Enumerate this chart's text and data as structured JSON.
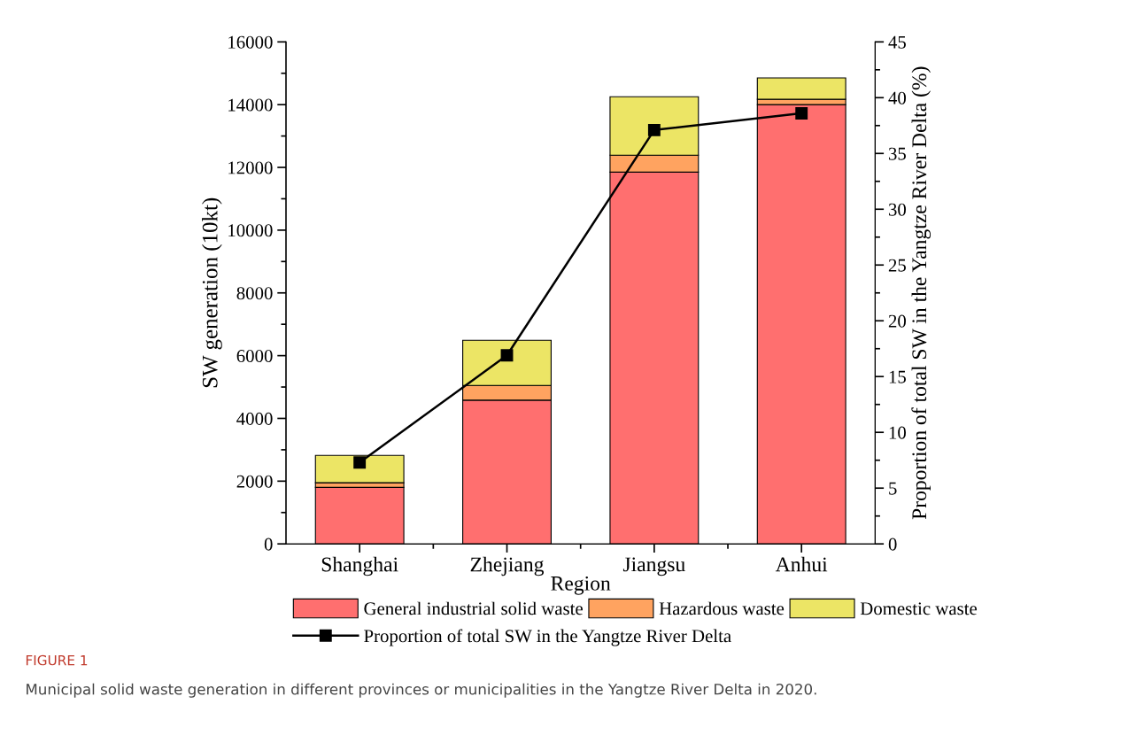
{
  "chart_data": {
    "type": "bar",
    "stacked": true,
    "xlabel": "Region",
    "ylabel": "SW generation (10kt)",
    "y2label": "Proportion of total SW in the Yangtze River Delta (%)",
    "categories": [
      "Shanghai",
      "Zhejiang",
      "Jiangsu",
      "Anhui"
    ],
    "series": [
      {
        "name": "General industrial solid waste",
        "color": "#ff6f6f",
        "values": [
          1800,
          4580,
          11850,
          14000
        ]
      },
      {
        "name": "Hazardous waste",
        "color": "#ffa360",
        "values": [
          150,
          470,
          540,
          170
        ]
      },
      {
        "name": "Domestic waste",
        "color": "#ece565",
        "values": [
          870,
          1440,
          1860,
          680
        ]
      },
      {
        "name": "Proportion of total SW in the Yangtze River Delta",
        "type": "line",
        "axis": "y2",
        "color": "#000000",
        "marker": "square",
        "values": [
          7.3,
          16.9,
          37.1,
          38.6
        ]
      }
    ],
    "ylim": [
      0,
      16000
    ],
    "yticks": [
      0,
      2000,
      4000,
      6000,
      8000,
      10000,
      12000,
      14000,
      16000
    ],
    "y2lim": [
      0,
      45
    ],
    "y2ticks": [
      0,
      5,
      10,
      15,
      20,
      25,
      30,
      35,
      40,
      45
    ],
    "grid": false,
    "legend": "bottom",
    "annotations": [
      "FIGURE 1",
      "Municipal solid waste generation in different provinces or municipalities in the Yangtze River Delta in 2020."
    ]
  }
}
